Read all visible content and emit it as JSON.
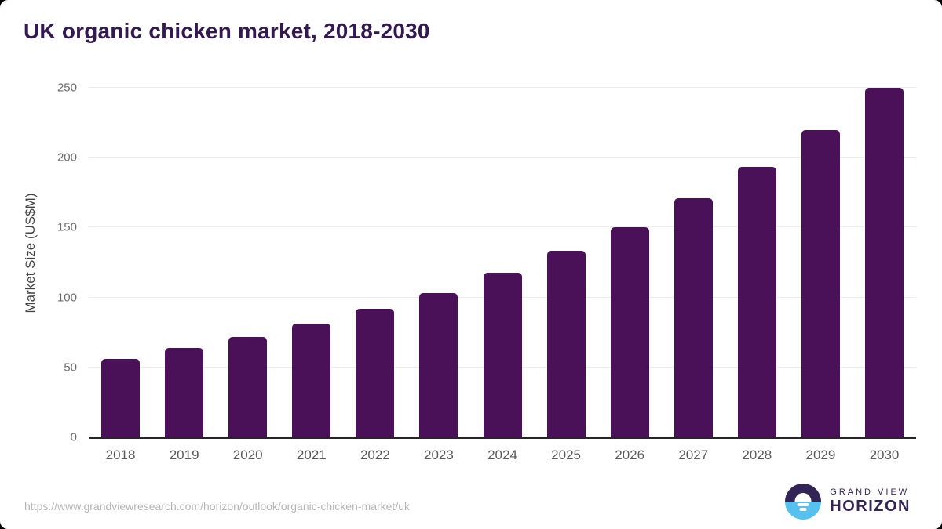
{
  "colors": {
    "bar": "#4a1158",
    "title": "#33194f",
    "grid": "#ececec",
    "axis_line": "#262626",
    "tick_label": "#6b6b6b",
    "url_text": "#b5b5b5",
    "logo_dark": "#332456",
    "logo_blue": "#56c1ee"
  },
  "chart_data": {
    "type": "bar",
    "title": "UK organic chicken market, 2018-2030",
    "xlabel": "",
    "ylabel": "Market Size (US$M)",
    "categories": [
      "2018",
      "2019",
      "2020",
      "2021",
      "2022",
      "2023",
      "2024",
      "2025",
      "2026",
      "2027",
      "2028",
      "2029",
      "2030"
    ],
    "values": [
      55.8,
      64.0,
      72.0,
      81.4,
      92.1,
      103.2,
      117.6,
      133.4,
      150.0,
      170.9,
      193.2,
      219.7,
      249.8
    ],
    "ylim": [
      0,
      250
    ],
    "yticks": [
      0,
      50,
      100,
      150,
      200,
      250
    ],
    "grid": true,
    "legend": false,
    "bar_color": "#4a1158"
  },
  "footer": {
    "source_url": "https://www.grandviewresearch.com/horizon/outlook/organic-chicken-market/uk",
    "logo": {
      "top": "GRAND VIEW",
      "bottom": "HORIZON"
    }
  }
}
